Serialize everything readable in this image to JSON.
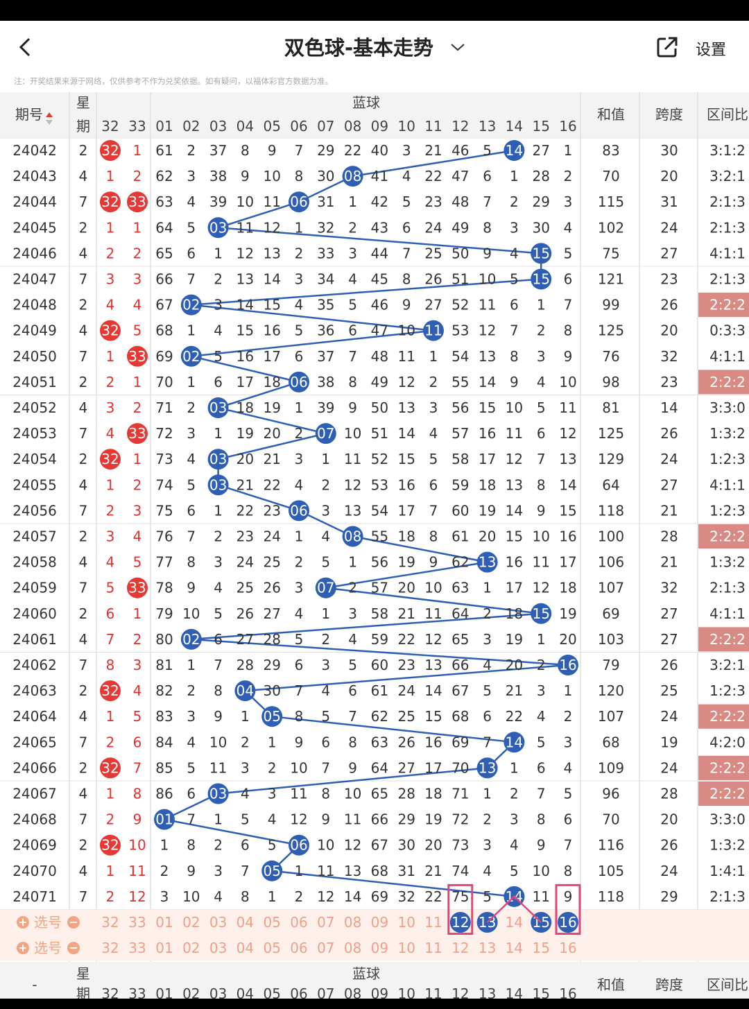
{
  "header": {
    "title": "双色球-基本走势",
    "settings_label": "设置"
  },
  "note": "注：开奖结果来源于网络，仅供参考不作为兑奖依据。如有疑问，以福体彩官方数据为准。",
  "columns": {
    "period": "期号",
    "weekday_top": "星",
    "weekday_bottom": "期",
    "blue_group": "蓝球",
    "red_cols": [
      "32",
      "33"
    ],
    "blue_cols": [
      "01",
      "02",
      "03",
      "04",
      "05",
      "06",
      "07",
      "08",
      "09",
      "10",
      "11",
      "12",
      "13",
      "14",
      "15",
      "16"
    ],
    "sum": "和值",
    "span": "跨度",
    "ratio": "区间比"
  },
  "rows": [
    {
      "p": "24042",
      "w": "2",
      "r": [
        "32",
        "1"
      ],
      "b": [
        "61",
        "2",
        "37",
        "8",
        "9",
        "7",
        "29",
        "22",
        "40",
        "3",
        "21",
        "46",
        "5",
        "14",
        "27",
        "1"
      ],
      "blue": 14,
      "s": "83",
      "k": "30",
      "z": "3:1:2",
      "hl": false,
      "hr": [
        0
      ]
    },
    {
      "p": "24043",
      "w": "4",
      "r": [
        "1",
        "2"
      ],
      "b": [
        "62",
        "3",
        "38",
        "9",
        "10",
        "8",
        "30",
        "08",
        "41",
        "4",
        "22",
        "47",
        "6",
        "1",
        "28",
        "2"
      ],
      "blue": 8,
      "s": "70",
      "k": "20",
      "z": "3:2:1",
      "hl": false,
      "hr": []
    },
    {
      "p": "24044",
      "w": "7",
      "r": [
        "32",
        "33"
      ],
      "b": [
        "63",
        "4",
        "39",
        "10",
        "11",
        "06",
        "31",
        "1",
        "42",
        "5",
        "23",
        "48",
        "7",
        "2",
        "29",
        "3"
      ],
      "blue": 6,
      "s": "115",
      "k": "31",
      "z": "2:1:3",
      "hl": false,
      "hr": [
        0,
        1
      ]
    },
    {
      "p": "24045",
      "w": "2",
      "r": [
        "1",
        "1"
      ],
      "b": [
        "64",
        "5",
        "03",
        "11",
        "12",
        "1",
        "32",
        "2",
        "43",
        "6",
        "24",
        "49",
        "8",
        "3",
        "30",
        "4"
      ],
      "blue": 3,
      "s": "102",
      "k": "24",
      "z": "2:1:3",
      "hl": false,
      "hr": []
    },
    {
      "p": "24046",
      "w": "4",
      "r": [
        "2",
        "2"
      ],
      "b": [
        "65",
        "6",
        "1",
        "12",
        "13",
        "2",
        "33",
        "3",
        "44",
        "7",
        "25",
        "50",
        "9",
        "4",
        "15",
        "5"
      ],
      "blue": 15,
      "s": "75",
      "k": "27",
      "z": "4:1:1",
      "hl": false,
      "hr": []
    },
    {
      "p": "24047",
      "w": "7",
      "r": [
        "3",
        "3"
      ],
      "b": [
        "66",
        "7",
        "2",
        "13",
        "14",
        "3",
        "34",
        "4",
        "45",
        "8",
        "26",
        "51",
        "10",
        "5",
        "15",
        "6"
      ],
      "blue": 15,
      "s": "121",
      "k": "23",
      "z": "2:1:3",
      "hl": false,
      "hr": []
    },
    {
      "p": "24048",
      "w": "2",
      "r": [
        "4",
        "4"
      ],
      "b": [
        "67",
        "02",
        "3",
        "14",
        "15",
        "4",
        "35",
        "5",
        "46",
        "9",
        "27",
        "52",
        "11",
        "6",
        "1",
        "7"
      ],
      "blue": 2,
      "s": "99",
      "k": "26",
      "z": "2:2:2",
      "hl": true,
      "hr": []
    },
    {
      "p": "24049",
      "w": "4",
      "r": [
        "32",
        "5"
      ],
      "b": [
        "68",
        "1",
        "4",
        "15",
        "16",
        "5",
        "36",
        "6",
        "47",
        "10",
        "11",
        "53",
        "12",
        "7",
        "2",
        "8"
      ],
      "blue": 11,
      "s": "125",
      "k": "20",
      "z": "0:3:3",
      "hl": false,
      "hr": [
        0
      ]
    },
    {
      "p": "24050",
      "w": "7",
      "r": [
        "1",
        "33"
      ],
      "b": [
        "69",
        "02",
        "5",
        "16",
        "17",
        "6",
        "37",
        "7",
        "48",
        "11",
        "1",
        "54",
        "13",
        "8",
        "3",
        "9"
      ],
      "blue": 2,
      "s": "76",
      "k": "32",
      "z": "4:1:1",
      "hl": false,
      "hr": [
        1
      ]
    },
    {
      "p": "24051",
      "w": "2",
      "r": [
        "2",
        "1"
      ],
      "b": [
        "70",
        "1",
        "6",
        "17",
        "18",
        "06",
        "38",
        "8",
        "49",
        "12",
        "2",
        "55",
        "14",
        "9",
        "4",
        "10"
      ],
      "blue": 6,
      "s": "98",
      "k": "23",
      "z": "2:2:2",
      "hl": true,
      "hr": []
    },
    {
      "p": "24052",
      "w": "4",
      "r": [
        "3",
        "2"
      ],
      "b": [
        "71",
        "2",
        "03",
        "18",
        "19",
        "1",
        "39",
        "9",
        "50",
        "13",
        "3",
        "56",
        "15",
        "10",
        "5",
        "11"
      ],
      "blue": 3,
      "s": "81",
      "k": "14",
      "z": "3:3:0",
      "hl": false,
      "hr": []
    },
    {
      "p": "24053",
      "w": "7",
      "r": [
        "4",
        "33"
      ],
      "b": [
        "72",
        "3",
        "1",
        "19",
        "20",
        "2",
        "07",
        "10",
        "51",
        "14",
        "4",
        "57",
        "16",
        "11",
        "6",
        "12"
      ],
      "blue": 7,
      "s": "125",
      "k": "26",
      "z": "1:3:2",
      "hl": false,
      "hr": [
        1
      ]
    },
    {
      "p": "24054",
      "w": "2",
      "r": [
        "32",
        "1"
      ],
      "b": [
        "73",
        "4",
        "03",
        "20",
        "21",
        "3",
        "1",
        "11",
        "52",
        "15",
        "5",
        "58",
        "17",
        "12",
        "7",
        "13"
      ],
      "blue": 3,
      "s": "129",
      "k": "24",
      "z": "1:2:3",
      "hl": false,
      "hr": [
        0
      ]
    },
    {
      "p": "24055",
      "w": "4",
      "r": [
        "1",
        "2"
      ],
      "b": [
        "74",
        "5",
        "03",
        "21",
        "22",
        "4",
        "2",
        "12",
        "53",
        "16",
        "6",
        "59",
        "18",
        "13",
        "8",
        "14"
      ],
      "blue": 3,
      "s": "64",
      "k": "27",
      "z": "4:1:1",
      "hl": false,
      "hr": []
    },
    {
      "p": "24056",
      "w": "7",
      "r": [
        "2",
        "3"
      ],
      "b": [
        "75",
        "6",
        "1",
        "22",
        "23",
        "06",
        "3",
        "13",
        "54",
        "17",
        "7",
        "60",
        "19",
        "14",
        "9",
        "15"
      ],
      "blue": 6,
      "s": "118",
      "k": "21",
      "z": "1:2:3",
      "hl": false,
      "hr": []
    },
    {
      "p": "24057",
      "w": "2",
      "r": [
        "3",
        "4"
      ],
      "b": [
        "76",
        "7",
        "2",
        "23",
        "24",
        "1",
        "4",
        "08",
        "55",
        "18",
        "8",
        "61",
        "20",
        "15",
        "10",
        "16"
      ],
      "blue": 8,
      "s": "100",
      "k": "28",
      "z": "2:2:2",
      "hl": true,
      "hr": []
    },
    {
      "p": "24058",
      "w": "4",
      "r": [
        "4",
        "5"
      ],
      "b": [
        "77",
        "8",
        "3",
        "24",
        "25",
        "2",
        "5",
        "1",
        "56",
        "19",
        "9",
        "62",
        "13",
        "16",
        "11",
        "17"
      ],
      "blue": 13,
      "s": "106",
      "k": "21",
      "z": "1:3:2",
      "hl": false,
      "hr": []
    },
    {
      "p": "24059",
      "w": "7",
      "r": [
        "5",
        "33"
      ],
      "b": [
        "78",
        "9",
        "4",
        "25",
        "26",
        "3",
        "07",
        "2",
        "57",
        "20",
        "10",
        "63",
        "1",
        "17",
        "12",
        "18"
      ],
      "blue": 7,
      "s": "107",
      "k": "32",
      "z": "2:1:3",
      "hl": false,
      "hr": [
        1
      ]
    },
    {
      "p": "24060",
      "w": "2",
      "r": [
        "6",
        "1"
      ],
      "b": [
        "79",
        "10",
        "5",
        "26",
        "27",
        "4",
        "1",
        "3",
        "58",
        "21",
        "11",
        "64",
        "2",
        "18",
        "15",
        "19"
      ],
      "blue": 15,
      "s": "69",
      "k": "27",
      "z": "4:1:1",
      "hl": false,
      "hr": []
    },
    {
      "p": "24061",
      "w": "4",
      "r": [
        "7",
        "2"
      ],
      "b": [
        "80",
        "02",
        "6",
        "27",
        "28",
        "5",
        "2",
        "4",
        "59",
        "22",
        "12",
        "65",
        "3",
        "19",
        "1",
        "20"
      ],
      "blue": 2,
      "s": "103",
      "k": "27",
      "z": "2:2:2",
      "hl": true,
      "hr": []
    },
    {
      "p": "24062",
      "w": "7",
      "r": [
        "8",
        "3"
      ],
      "b": [
        "81",
        "1",
        "7",
        "28",
        "29",
        "6",
        "3",
        "5",
        "60",
        "23",
        "13",
        "66",
        "4",
        "20",
        "2",
        "16"
      ],
      "blue": 16,
      "s": "79",
      "k": "26",
      "z": "3:2:1",
      "hl": false,
      "hr": []
    },
    {
      "p": "24063",
      "w": "2",
      "r": [
        "32",
        "4"
      ],
      "b": [
        "82",
        "2",
        "8",
        "04",
        "30",
        "7",
        "4",
        "6",
        "61",
        "24",
        "14",
        "67",
        "5",
        "21",
        "3",
        "1"
      ],
      "blue": 4,
      "s": "120",
      "k": "25",
      "z": "1:2:3",
      "hl": false,
      "hr": [
        0
      ]
    },
    {
      "p": "24064",
      "w": "4",
      "r": [
        "1",
        "5"
      ],
      "b": [
        "83",
        "3",
        "9",
        "1",
        "05",
        "8",
        "5",
        "7",
        "62",
        "25",
        "15",
        "68",
        "6",
        "22",
        "4",
        "2"
      ],
      "blue": 5,
      "s": "107",
      "k": "24",
      "z": "2:2:2",
      "hl": true,
      "hr": []
    },
    {
      "p": "24065",
      "w": "7",
      "r": [
        "2",
        "6"
      ],
      "b": [
        "84",
        "4",
        "10",
        "2",
        "1",
        "9",
        "6",
        "8",
        "63",
        "26",
        "16",
        "69",
        "7",
        "14",
        "5",
        "3"
      ],
      "blue": 14,
      "s": "68",
      "k": "19",
      "z": "4:2:0",
      "hl": false,
      "hr": []
    },
    {
      "p": "24066",
      "w": "2",
      "r": [
        "32",
        "7"
      ],
      "b": [
        "85",
        "5",
        "11",
        "3",
        "2",
        "10",
        "7",
        "9",
        "64",
        "27",
        "17",
        "70",
        "13",
        "1",
        "6",
        "4"
      ],
      "blue": 13,
      "s": "109",
      "k": "24",
      "z": "2:2:2",
      "hl": true,
      "hr": [
        0
      ]
    },
    {
      "p": "24067",
      "w": "4",
      "r": [
        "1",
        "8"
      ],
      "b": [
        "86",
        "6",
        "03",
        "4",
        "3",
        "11",
        "8",
        "10",
        "65",
        "28",
        "18",
        "71",
        "1",
        "2",
        "7",
        "5"
      ],
      "blue": 3,
      "s": "96",
      "k": "28",
      "z": "2:2:2",
      "hl": true,
      "hr": []
    },
    {
      "p": "24068",
      "w": "7",
      "r": [
        "2",
        "9"
      ],
      "b": [
        "01",
        "7",
        "1",
        "5",
        "4",
        "12",
        "9",
        "11",
        "66",
        "29",
        "19",
        "72",
        "2",
        "3",
        "8",
        "6"
      ],
      "blue": 1,
      "s": "70",
      "k": "20",
      "z": "3:3:0",
      "hl": false,
      "hr": []
    },
    {
      "p": "24069",
      "w": "2",
      "r": [
        "32",
        "10"
      ],
      "b": [
        "1",
        "8",
        "2",
        "6",
        "5",
        "06",
        "10",
        "12",
        "67",
        "30",
        "20",
        "73",
        "3",
        "4",
        "9",
        "7"
      ],
      "blue": 6,
      "s": "116",
      "k": "26",
      "z": "1:3:2",
      "hl": false,
      "hr": [
        0
      ]
    },
    {
      "p": "24070",
      "w": "4",
      "r": [
        "1",
        "11"
      ],
      "b": [
        "2",
        "9",
        "3",
        "7",
        "05",
        "1",
        "11",
        "13",
        "68",
        "31",
        "21",
        "74",
        "4",
        "5",
        "10",
        "8"
      ],
      "blue": 5,
      "s": "105",
      "k": "24",
      "z": "1:4:1",
      "hl": false,
      "hr": []
    },
    {
      "p": "24071",
      "w": "7",
      "r": [
        "2",
        "12"
      ],
      "b": [
        "3",
        "10",
        "4",
        "8",
        "1",
        "2",
        "12",
        "14",
        "69",
        "32",
        "22",
        "75",
        "5",
        "14",
        "11",
        "9"
      ],
      "blue": 14,
      "s": "118",
      "k": "29",
      "z": "2:1:3",
      "hl": false,
      "hr": []
    }
  ],
  "picker": {
    "label": "选号",
    "selected_blue": [
      "12",
      "13",
      "15",
      "16"
    ]
  },
  "footer": {
    "dash": "-",
    "weekday_top": "星",
    "weekday_bottom": "期",
    "blue_group": "蓝球",
    "sum": "和值",
    "span": "跨度",
    "ratio": "区间比"
  },
  "colors": {
    "blue_ball": "#2f5fb5",
    "red_ball": "#e53935",
    "highlight": "#d98a84",
    "pink_box": "#e0457b"
  }
}
